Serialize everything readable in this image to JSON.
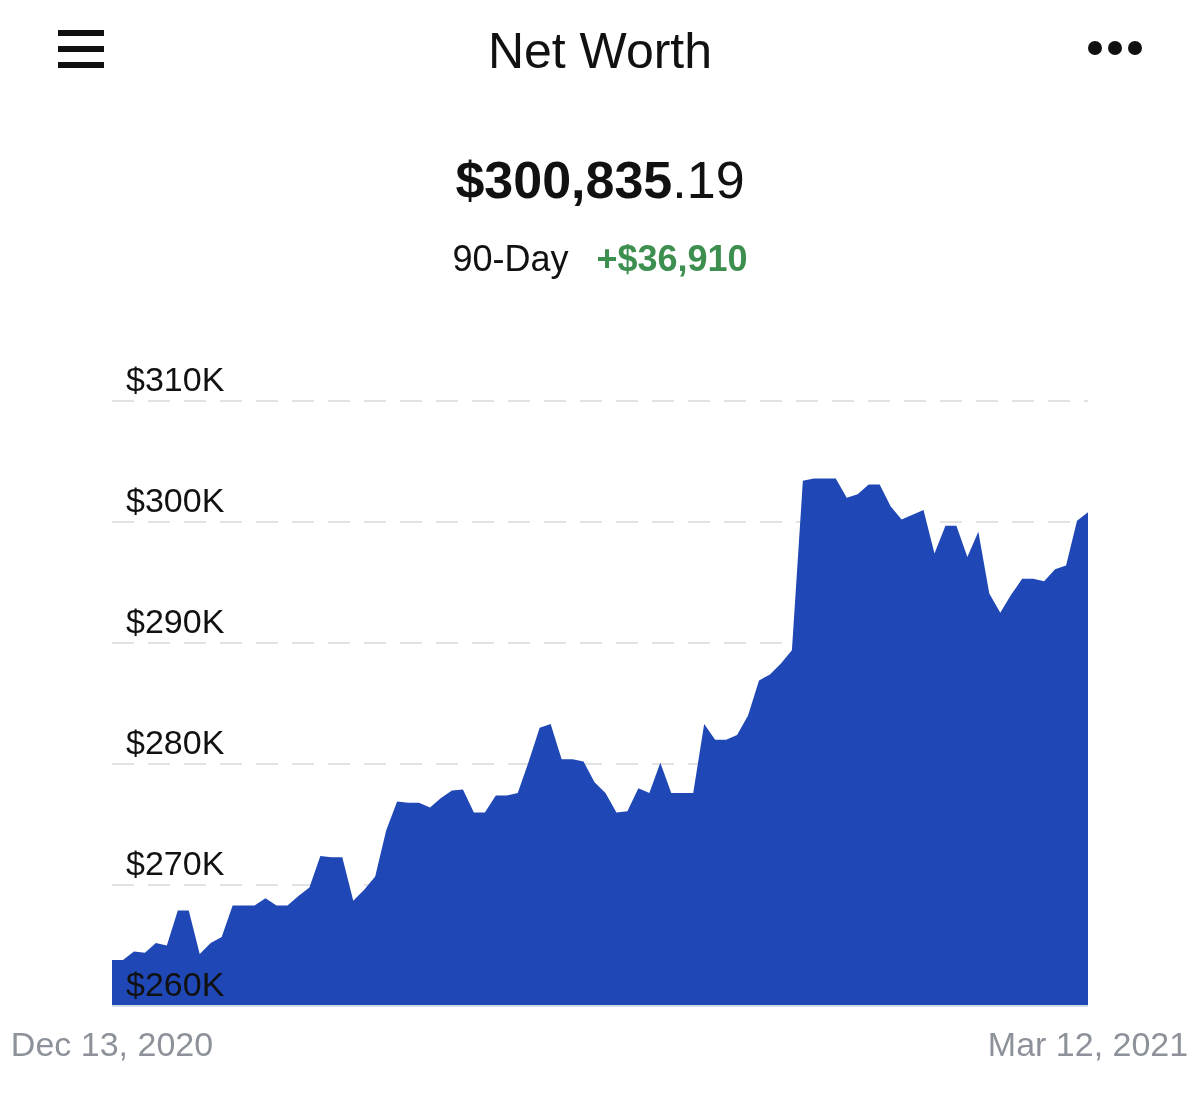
{
  "chart_data": {
    "type": "area",
    "title": "Net Worth",
    "subtitle": "$300,835.19",
    "annotations": [
      "90-Day",
      "+$36,910"
    ],
    "x": [
      "2020-12-13",
      "2020-12-14",
      "2020-12-15",
      "2020-12-16",
      "2020-12-17",
      "2020-12-18",
      "2020-12-19",
      "2020-12-20",
      "2020-12-21",
      "2020-12-22",
      "2020-12-23",
      "2020-12-24",
      "2020-12-25",
      "2020-12-26",
      "2020-12-27",
      "2020-12-28",
      "2020-12-29",
      "2020-12-30",
      "2020-12-31",
      "2021-01-01",
      "2021-01-02",
      "2021-01-03",
      "2021-01-04",
      "2021-01-05",
      "2021-01-06",
      "2021-01-07",
      "2021-01-08",
      "2021-01-09",
      "2021-01-10",
      "2021-01-11",
      "2021-01-12",
      "2021-01-13",
      "2021-01-14",
      "2021-01-15",
      "2021-01-16",
      "2021-01-17",
      "2021-01-18",
      "2021-01-19",
      "2021-01-20",
      "2021-01-21",
      "2021-01-22",
      "2021-01-23",
      "2021-01-24",
      "2021-01-25",
      "2021-01-26",
      "2021-01-27",
      "2021-01-28",
      "2021-01-29",
      "2021-01-30",
      "2021-01-31",
      "2021-02-01",
      "2021-02-02",
      "2021-02-03",
      "2021-02-04",
      "2021-02-05",
      "2021-02-06",
      "2021-02-07",
      "2021-02-08",
      "2021-02-09",
      "2021-02-10",
      "2021-02-11",
      "2021-02-12",
      "2021-02-13",
      "2021-02-14",
      "2021-02-15",
      "2021-02-16",
      "2021-02-17",
      "2021-02-18",
      "2021-02-19",
      "2021-02-20",
      "2021-02-21",
      "2021-02-22",
      "2021-02-23",
      "2021-02-24",
      "2021-02-25",
      "2021-02-26",
      "2021-02-27",
      "2021-02-28",
      "2021-03-01",
      "2021-03-02",
      "2021-03-03",
      "2021-03-04",
      "2021-03-05",
      "2021-03-06",
      "2021-03-07",
      "2021-03-08",
      "2021-03-09",
      "2021-03-10",
      "2021-03-11",
      "2021-03-12"
    ],
    "values": [
      263.8,
      263.8,
      264.5,
      264.4,
      265.2,
      265.0,
      267.9,
      267.9,
      264.3,
      265.2,
      265.7,
      268.3,
      268.3,
      268.3,
      268.9,
      268.3,
      268.3,
      269.1,
      269.8,
      272.4,
      272.3,
      272.3,
      268.7,
      269.6,
      270.7,
      274.5,
      276.9,
      276.8,
      276.8,
      276.4,
      277.2,
      277.8,
      277.9,
      276.0,
      276.0,
      277.4,
      277.4,
      277.6,
      280.2,
      283.0,
      283.3,
      280.4,
      280.4,
      280.2,
      278.5,
      277.6,
      276.0,
      276.1,
      278.0,
      277.6,
      280.1,
      277.6,
      277.6,
      277.6,
      283.3,
      282.0,
      282.0,
      282.4,
      284.0,
      286.9,
      287.4,
      288.3,
      289.4,
      303.4,
      303.6,
      303.6,
      303.6,
      302.0,
      302.3,
      303.1,
      303.1,
      301.3,
      300.2,
      300.6,
      301.0,
      297.4,
      299.7,
      299.7,
      297.1,
      299.2,
      294.1,
      292.5,
      294.0,
      295.3,
      295.3,
      295.1,
      296.1,
      296.4,
      300.1,
      300.8
    ],
    "color": "#1f47b5",
    "xlim": [
      "2020-12-13",
      "2021-03-12"
    ],
    "xticks": [
      {
        "value": "2020-12-13",
        "label": "Dec 13, 2020"
      },
      {
        "value": "2021-03-12",
        "label": "Mar 12, 2021"
      }
    ],
    "ylim": [
      260,
      310
    ],
    "yticks": [
      {
        "value": 260,
        "label": "$260K"
      },
      {
        "value": 270,
        "label": "$270K"
      },
      {
        "value": 280,
        "label": "$280K"
      },
      {
        "value": 290,
        "label": "$290K"
      },
      {
        "value": 300,
        "label": "$300K"
      },
      {
        "value": 310,
        "label": "$310K"
      }
    ],
    "grid": "y"
  }
}
